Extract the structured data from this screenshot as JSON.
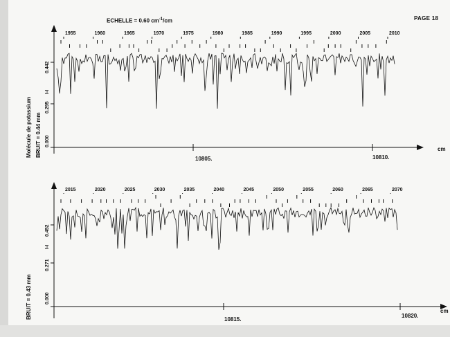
{
  "page_label": "PAGE 18",
  "scale": {
    "prefix": "ECHELLE = 0.60 cm",
    "sup": "-1",
    "suffix": "/cm"
  },
  "molecule": "Molécule de potassium",
  "panels": [
    {
      "noise": "BRUIT = 0.44 mm",
      "axis_label": "I-I",
      "unit": "cm"
    },
    {
      "noise": "BRUIT = 0.43 mm",
      "axis_label": "I-I",
      "unit": "cm"
    }
  ],
  "chart_data": [
    {
      "type": "line",
      "xlabel": "cm",
      "ylabel": "I-I",
      "x_tick_labels": [
        "10805.",
        "10810."
      ],
      "y_tick_labels": [
        "0.000",
        "0.295",
        "0.442"
      ],
      "line_markers": [
        "1955",
        "1960",
        "1965",
        "1970",
        "1975",
        "1980",
        "1985",
        "1990",
        "1995",
        "2000",
        "2005",
        "2010"
      ],
      "grid": false
    },
    {
      "type": "line",
      "xlabel": "cm",
      "ylabel": "I-I",
      "x_tick_labels": [
        "10815.",
        "10820."
      ],
      "y_tick_labels": [
        "0.000",
        "0.271",
        "0.452"
      ],
      "line_markers": [
        "2015",
        "2020",
        "2025",
        "2030",
        "2035",
        "2040",
        "2045",
        "2050",
        "2055",
        "2060",
        "2065",
        "2070"
      ],
      "grid": false
    }
  ]
}
